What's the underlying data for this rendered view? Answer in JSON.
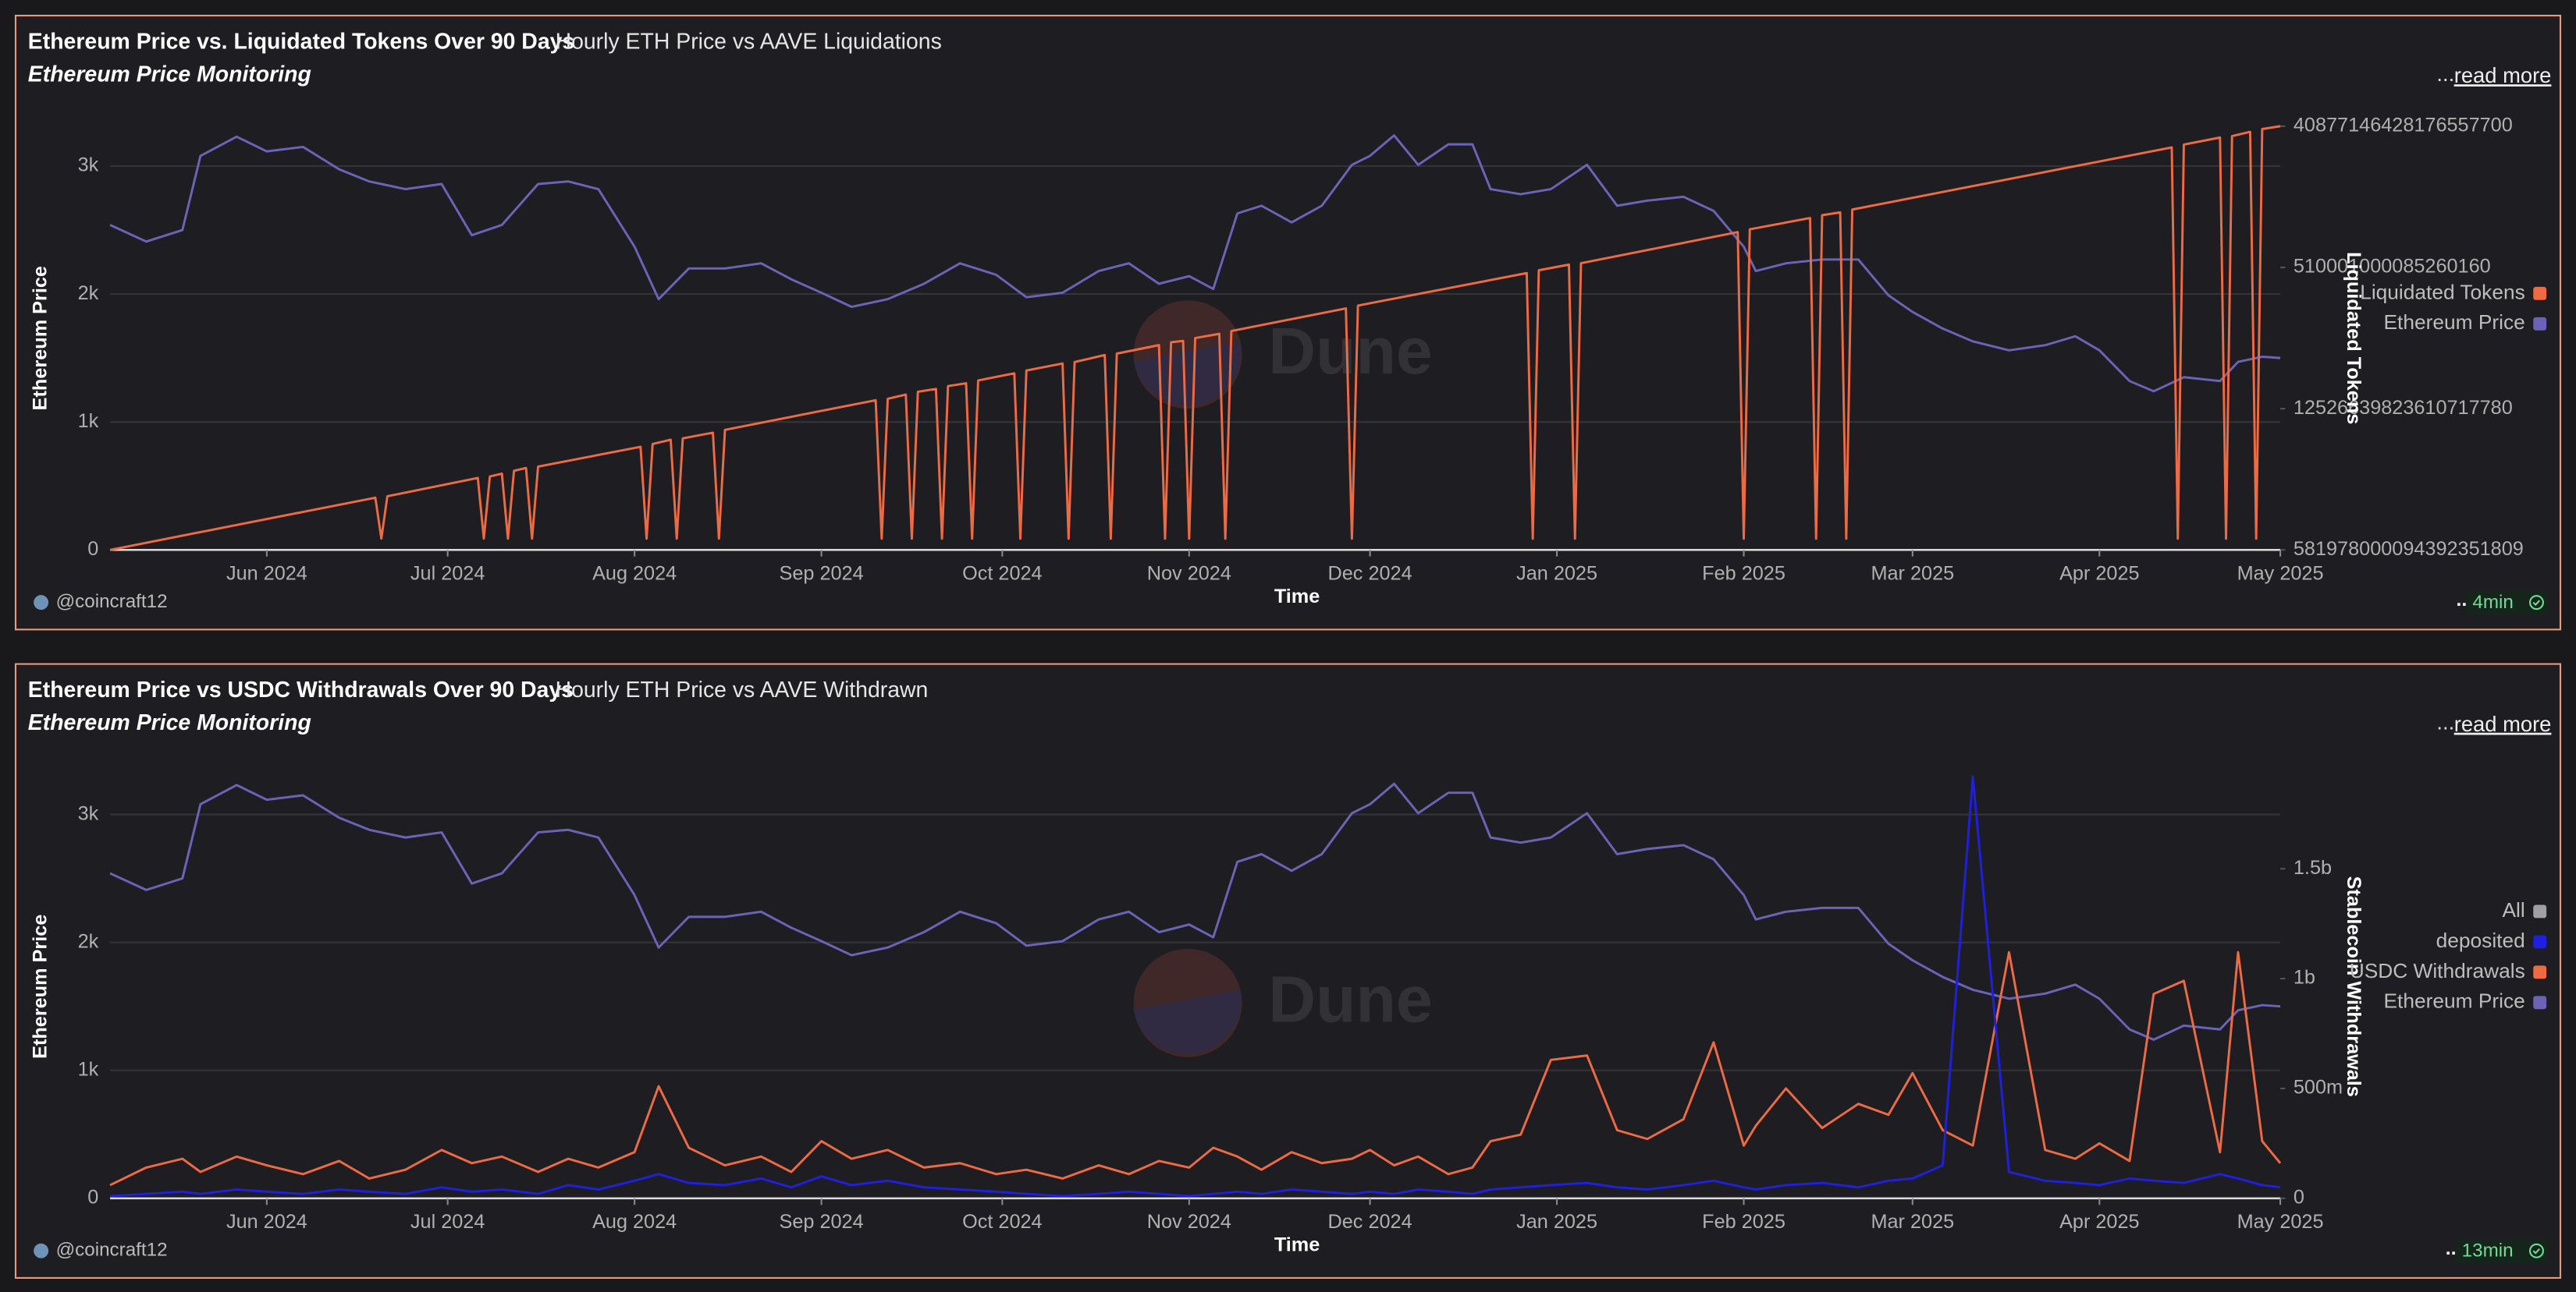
{
  "chart_data": [
    {
      "type": "line",
      "title": "Ethereum Price vs. Liquidated Tokens Over 90 Days",
      "subtitle": "Hourly ETH Price vs AAVE Liquidations",
      "description": "Ethereum Price Monitoring",
      "read_more": "read more",
      "menu": "...",
      "footer_menu": "...",
      "author": "@coincraft12",
      "age": "4min",
      "watermark": "Dune",
      "x_label": "Time",
      "y_label": "Ethereum Price",
      "y2_label": "Liquidated Tokens",
      "legend": "right",
      "grid": true,
      "xlim": [
        "2024-05-06",
        "2025-05-01"
      ],
      "xticks": [
        {
          "value": "2024-06-01",
          "label": "Jun 2024"
        },
        {
          "value": "2024-07-01",
          "label": "Jul 2024"
        },
        {
          "value": "2024-08-01",
          "label": "Aug 2024"
        },
        {
          "value": "2024-09-01",
          "label": "Sep 2024"
        },
        {
          "value": "2024-10-01",
          "label": "Oct 2024"
        },
        {
          "value": "2024-11-01",
          "label": "Nov 2024"
        },
        {
          "value": "2024-12-01",
          "label": "Dec 2024"
        },
        {
          "value": "2025-01-01",
          "label": "Jan 2025"
        },
        {
          "value": "2025-02-01",
          "label": "Feb 2025"
        },
        {
          "value": "2025-03-01",
          "label": "Mar 2025"
        },
        {
          "value": "2025-04-01",
          "label": "Apr 2025"
        },
        {
          "value": "2025-05-01",
          "label": "May 2025"
        }
      ],
      "ylim": [
        0,
        3400
      ],
      "yticks": [
        0,
        {
          "value": 1000,
          "label": "1k"
        },
        {
          "value": 2000,
          "label": "2k"
        },
        {
          "value": 3000,
          "label": "3k"
        }
      ],
      "y2lim": [
        0,
        3.08
      ],
      "y2ticks": [
        {
          "value": 0,
          "label": "581978000094392351809"
        },
        {
          "value": 1,
          "label": "12526639823610717780"
        },
        {
          "value": 2,
          "label": "510001000085260160"
        },
        {
          "value": 3,
          "label": "40877146428176557700"
        }
      ],
      "x": [
        "2024-05-06",
        "2024-05-12",
        "2024-05-18",
        "2024-05-21",
        "2024-05-27",
        "2024-06-01",
        "2024-06-07",
        "2024-06-13",
        "2024-06-18",
        "2024-06-24",
        "2024-06-30",
        "2024-07-05",
        "2024-07-10",
        "2024-07-16",
        "2024-07-21",
        "2024-07-26",
        "2024-08-01",
        "2024-08-05",
        "2024-08-10",
        "2024-08-16",
        "2024-08-22",
        "2024-08-27",
        "2024-09-01",
        "2024-09-06",
        "2024-09-12",
        "2024-09-18",
        "2024-09-24",
        "2024-09-30",
        "2024-10-05",
        "2024-10-11",
        "2024-10-17",
        "2024-10-22",
        "2024-10-27",
        "2024-11-01",
        "2024-11-05",
        "2024-11-09",
        "2024-11-13",
        "2024-11-18",
        "2024-11-23",
        "2024-11-28",
        "2024-12-01",
        "2024-12-05",
        "2024-12-09",
        "2024-12-14",
        "2024-12-18",
        "2024-12-21",
        "2024-12-26",
        "2024-12-31",
        "2025-01-06",
        "2025-01-11",
        "2025-01-16",
        "2025-01-22",
        "2025-01-27",
        "2025-02-01",
        "2025-02-03",
        "2025-02-08",
        "2025-02-14",
        "2025-02-20",
        "2025-02-25",
        "2025-03-01",
        "2025-03-06",
        "2025-03-11",
        "2025-03-17",
        "2025-03-23",
        "2025-03-28",
        "2025-04-01",
        "2025-04-06",
        "2025-04-10",
        "2025-04-15",
        "2025-04-21",
        "2025-04-24",
        "2025-04-28",
        "2025-05-01"
      ],
      "series": [
        {
          "name": "Liquidated Tokens",
          "color": "#ee6a43",
          "axis": "y2",
          "x": [
            "2024-05-06",
            "2024-06-19",
            "2024-06-20",
            "2024-06-21",
            "2024-07-06",
            "2024-07-07",
            "2024-07-08",
            "2024-07-10",
            "2024-07-11",
            "2024-07-12",
            "2024-07-14",
            "2024-07-15",
            "2024-07-16",
            "2024-08-02",
            "2024-08-03",
            "2024-08-04",
            "2024-08-07",
            "2024-08-08",
            "2024-08-09",
            "2024-08-14",
            "2024-08-15",
            "2024-08-16",
            "2024-09-10",
            "2024-09-11",
            "2024-09-12",
            "2024-09-15",
            "2024-09-16",
            "2024-09-17",
            "2024-09-20",
            "2024-09-21",
            "2024-09-22",
            "2024-09-25",
            "2024-09-26",
            "2024-09-27",
            "2024-10-03",
            "2024-10-04",
            "2024-10-05",
            "2024-10-11",
            "2024-10-12",
            "2024-10-13",
            "2024-10-18",
            "2024-10-19",
            "2024-10-20",
            "2024-10-27",
            "2024-10-28",
            "2024-10-29",
            "2024-10-31",
            "2024-11-01",
            "2024-11-02",
            "2024-11-06",
            "2024-11-07",
            "2024-11-08",
            "2024-11-27",
            "2024-11-28",
            "2024-11-29",
            "2024-12-27",
            "2024-12-28",
            "2024-12-29",
            "2025-01-03",
            "2025-01-04",
            "2025-01-05",
            "2025-01-31",
            "2025-02-01",
            "2025-02-02",
            "2025-02-12",
            "2025-02-13",
            "2025-02-14",
            "2025-02-17",
            "2025-02-18",
            "2025-02-19",
            "2025-04-13",
            "2025-04-14",
            "2025-04-15",
            "2025-04-21",
            "2025-04-22",
            "2025-04-23",
            "2025-04-26",
            "2025-04-27",
            "2025-04-28",
            "2025-05-01"
          ],
          "values": [
            0,
            0.37,
            0.08,
            0.38,
            0.51,
            0.08,
            0.52,
            0.54,
            0.08,
            0.56,
            0.58,
            0.08,
            0.59,
            0.73,
            0.08,
            0.75,
            0.78,
            0.08,
            0.79,
            0.83,
            0.08,
            0.85,
            1.06,
            0.08,
            1.07,
            1.1,
            0.08,
            1.12,
            1.14,
            0.08,
            1.16,
            1.18,
            0.08,
            1.2,
            1.25,
            0.08,
            1.27,
            1.32,
            0.08,
            1.33,
            1.38,
            0.08,
            1.39,
            1.45,
            0.08,
            1.47,
            1.48,
            0.08,
            1.5,
            1.53,
            0.08,
            1.55,
            1.71,
            0.08,
            1.73,
            1.96,
            0.08,
            1.98,
            2.02,
            0.08,
            2.03,
            2.25,
            0.08,
            2.27,
            2.35,
            0.08,
            2.37,
            2.39,
            0.08,
            2.41,
            2.85,
            0.08,
            2.87,
            2.92,
            0.08,
            2.93,
            2.96,
            0.08,
            2.98,
            3.0
          ]
        },
        {
          "name": "Ethereum Price",
          "color": "#6c63b8",
          "axis": "y",
          "values": [
            2540,
            2410,
            2500,
            3080,
            3230,
            3115,
            3150,
            2975,
            2880,
            2820,
            2860,
            2460,
            2540,
            2860,
            2880,
            2820,
            2370,
            1960,
            2200,
            2200,
            2240,
            2115,
            2010,
            1900,
            1960,
            2080,
            2240,
            2150,
            1975,
            2010,
            2180,
            2240,
            2080,
            2140,
            2040,
            2630,
            2690,
            2560,
            2690,
            3010,
            3080,
            3240,
            3010,
            3170,
            3170,
            2820,
            2780,
            2820,
            3010,
            2690,
            2730,
            2760,
            2650,
            2370,
            2180,
            2240,
            2270,
            2270,
            1990,
            1860,
            1730,
            1630,
            1560,
            1600,
            1670,
            1560,
            1320,
            1240,
            1350,
            1320,
            1470,
            1510,
            1500
          ]
        }
      ]
    },
    {
      "type": "line",
      "title": "Ethereum Price vs USDC Withdrawals Over 90 Days",
      "subtitle": "Hourly ETH Price vs AAVE Withdrawn",
      "description": "Ethereum Price Monitoring",
      "read_more": "read more",
      "menu": "...",
      "footer_menu": "...",
      "author": "@coincraft12",
      "age": "13min",
      "watermark": "Dune",
      "x_label": "Time",
      "y_label": "Ethereum Price",
      "y2_label": "Stablecoin Withdrawals",
      "legend": "right",
      "grid": true,
      "xlim": [
        "2024-05-06",
        "2025-05-01"
      ],
      "xticks": [
        {
          "value": "2024-06-01",
          "label": "Jun 2024"
        },
        {
          "value": "2024-07-01",
          "label": "Jul 2024"
        },
        {
          "value": "2024-08-01",
          "label": "Aug 2024"
        },
        {
          "value": "2024-09-01",
          "label": "Sep 2024"
        },
        {
          "value": "2024-10-01",
          "label": "Oct 2024"
        },
        {
          "value": "2024-11-01",
          "label": "Nov 2024"
        },
        {
          "value": "2024-12-01",
          "label": "Dec 2024"
        },
        {
          "value": "2025-01-01",
          "label": "Jan 2025"
        },
        {
          "value": "2025-02-01",
          "label": "Feb 2025"
        },
        {
          "value": "2025-03-01",
          "label": "Mar 2025"
        },
        {
          "value": "2025-04-01",
          "label": "Apr 2025"
        },
        {
          "value": "2025-05-01",
          "label": "May 2025"
        }
      ],
      "ylim": [
        0,
        3400
      ],
      "yticks": [
        0,
        {
          "value": 1000,
          "label": "1k"
        },
        {
          "value": 2000,
          "label": "2k"
        },
        {
          "value": 3000,
          "label": "3k"
        }
      ],
      "y2lim": [
        0,
        1980000000
      ],
      "y2ticks": [
        0,
        {
          "value": 500000000,
          "label": "500m"
        },
        {
          "value": 1000000000,
          "label": "1b"
        },
        {
          "value": 1500000000,
          "label": "1.5b"
        }
      ],
      "x": [
        "2024-05-06",
        "2024-05-12",
        "2024-05-18",
        "2024-05-21",
        "2024-05-27",
        "2024-06-01",
        "2024-06-07",
        "2024-06-13",
        "2024-06-18",
        "2024-06-24",
        "2024-06-30",
        "2024-07-05",
        "2024-07-10",
        "2024-07-16",
        "2024-07-21",
        "2024-07-26",
        "2024-08-01",
        "2024-08-05",
        "2024-08-10",
        "2024-08-16",
        "2024-08-22",
        "2024-08-27",
        "2024-09-01",
        "2024-09-06",
        "2024-09-12",
        "2024-09-18",
        "2024-09-24",
        "2024-09-30",
        "2024-10-05",
        "2024-10-11",
        "2024-10-17",
        "2024-10-22",
        "2024-10-27",
        "2024-11-01",
        "2024-11-05",
        "2024-11-09",
        "2024-11-13",
        "2024-11-18",
        "2024-11-23",
        "2024-11-28",
        "2024-12-01",
        "2024-12-05",
        "2024-12-09",
        "2024-12-14",
        "2024-12-18",
        "2024-12-21",
        "2024-12-26",
        "2024-12-31",
        "2025-01-06",
        "2025-01-11",
        "2025-01-16",
        "2025-01-22",
        "2025-01-27",
        "2025-02-01",
        "2025-02-03",
        "2025-02-08",
        "2025-02-14",
        "2025-02-20",
        "2025-02-25",
        "2025-03-01",
        "2025-03-06",
        "2025-03-11",
        "2025-03-17",
        "2025-03-23",
        "2025-03-28",
        "2025-04-01",
        "2025-04-06",
        "2025-04-10",
        "2025-04-15",
        "2025-04-21",
        "2025-04-24",
        "2025-04-28",
        "2025-05-01"
      ],
      "series": [
        {
          "name": "All",
          "color": "#a0a0a0",
          "axis": "y2",
          "values": [
            null,
            null,
            null,
            null,
            null,
            null,
            null,
            null,
            null,
            null,
            null,
            null,
            null,
            null,
            null,
            null,
            null,
            null,
            null,
            null,
            null,
            null,
            null,
            null,
            null,
            null,
            null,
            null,
            null,
            null,
            null,
            null,
            null,
            null,
            null,
            null,
            null,
            null,
            null,
            null,
            null,
            null,
            null,
            null,
            null,
            null,
            null,
            null,
            null,
            null,
            null,
            null,
            null,
            null,
            null,
            null,
            null,
            null,
            null,
            null,
            null,
            null,
            null,
            null,
            null,
            null,
            null,
            null,
            null,
            null,
            null,
            null,
            null
          ]
        },
        {
          "name": "deposited",
          "color": "#1f1fe0",
          "axis": "y2",
          "values": [
            10000000,
            20000000,
            30000000,
            20000000,
            40000000,
            30000000,
            20000000,
            40000000,
            30000000,
            20000000,
            50000000,
            30000000,
            40000000,
            20000000,
            60000000,
            40000000,
            80000000,
            110000000,
            70000000,
            60000000,
            90000000,
            50000000,
            100000000,
            60000000,
            80000000,
            50000000,
            40000000,
            30000000,
            20000000,
            10000000,
            20000000,
            30000000,
            20000000,
            10000000,
            20000000,
            30000000,
            20000000,
            40000000,
            30000000,
            20000000,
            30000000,
            20000000,
            40000000,
            30000000,
            20000000,
            40000000,
            50000000,
            60000000,
            70000000,
            50000000,
            40000000,
            60000000,
            80000000,
            50000000,
            40000000,
            60000000,
            70000000,
            50000000,
            80000000,
            90000000,
            150000000,
            1920000000,
            120000000,
            80000000,
            70000000,
            60000000,
            90000000,
            80000000,
            70000000,
            110000000,
            90000000,
            60000000,
            50000000
          ]
        },
        {
          "name": "USDC Withdrawals",
          "color": "#ee6a43",
          "axis": "y2",
          "values": [
            60000000,
            140000000,
            180000000,
            120000000,
            190000000,
            150000000,
            110000000,
            170000000,
            90000000,
            130000000,
            220000000,
            160000000,
            190000000,
            120000000,
            180000000,
            140000000,
            210000000,
            510000000,
            230000000,
            150000000,
            190000000,
            120000000,
            260000000,
            180000000,
            220000000,
            140000000,
            160000000,
            110000000,
            130000000,
            90000000,
            150000000,
            110000000,
            170000000,
            140000000,
            230000000,
            190000000,
            130000000,
            210000000,
            160000000,
            180000000,
            220000000,
            150000000,
            190000000,
            110000000,
            140000000,
            260000000,
            290000000,
            630000000,
            650000000,
            310000000,
            270000000,
            360000000,
            710000000,
            240000000,
            330000000,
            500000000,
            320000000,
            430000000,
            380000000,
            570000000,
            310000000,
            240000000,
            1120000000,
            220000000,
            180000000,
            250000000,
            170000000,
            930000000,
            990000000,
            210000000,
            1120000000,
            260000000,
            160000000
          ]
        },
        {
          "name": "Ethereum Price",
          "color": "#6c63b8",
          "axis": "y",
          "values": [
            2540,
            2410,
            2500,
            3080,
            3230,
            3115,
            3150,
            2975,
            2880,
            2820,
            2860,
            2460,
            2540,
            2860,
            2880,
            2820,
            2370,
            1960,
            2200,
            2200,
            2240,
            2115,
            2010,
            1900,
            1960,
            2080,
            2240,
            2150,
            1975,
            2010,
            2180,
            2240,
            2080,
            2140,
            2040,
            2630,
            2690,
            2560,
            2690,
            3010,
            3080,
            3240,
            3010,
            3170,
            3170,
            2820,
            2780,
            2820,
            3010,
            2690,
            2730,
            2760,
            2650,
            2370,
            2180,
            2240,
            2270,
            2270,
            1990,
            1860,
            1730,
            1630,
            1560,
            1600,
            1670,
            1560,
            1320,
            1240,
            1350,
            1320,
            1470,
            1510,
            1500
          ]
        }
      ]
    }
  ]
}
